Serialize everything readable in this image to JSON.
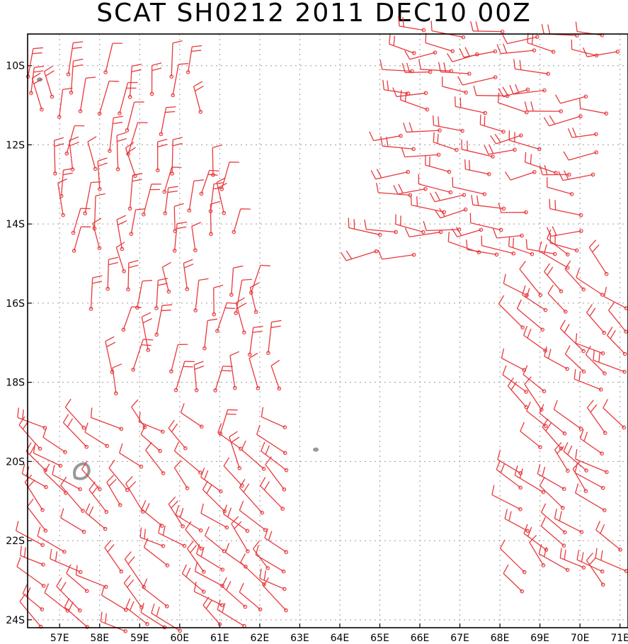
{
  "title": "SCAT SH0212 2011 DEC10 00Z",
  "map": {
    "lon_range": [
      56.2,
      71.2
    ],
    "lat_range": [
      -24.2,
      -9.2
    ],
    "lon_ticks": [
      57,
      58,
      59,
      60,
      61,
      62,
      63,
      64,
      65,
      66,
      67,
      68,
      69,
      70,
      71
    ],
    "lat_ticks": [
      -10,
      -12,
      -14,
      -16,
      -18,
      -20,
      -22,
      -24
    ],
    "lon_tick_labels": [
      "57E",
      "58E",
      "59E",
      "60E",
      "61E",
      "62E",
      "63E",
      "64E",
      "65E",
      "66E",
      "67E",
      "68E",
      "69E",
      "70E",
      "71E"
    ],
    "lat_tick_labels": [
      "10S",
      "12S",
      "14S",
      "16S",
      "18S",
      "20S",
      "22S",
      "24S"
    ],
    "grid": "dotted",
    "wind_barb_color": "#e8393d",
    "land_color": "#999999",
    "islands": [
      {
        "lon": 57.6,
        "lat": -20.3,
        "shape": "ring"
      },
      {
        "lon": 56.5,
        "lat": -10.35,
        "shape": "dot"
      },
      {
        "lon": 63.4,
        "lat": -19.7,
        "shape": "dot"
      }
    ],
    "swaths": [
      {
        "lon_min": 56.2,
        "lon_max": 60.3,
        "lat_top": -10.2,
        "lat_bot": -18.2,
        "dir": "N",
        "slant": 0.28
      },
      {
        "lon_min": 66.0,
        "lon_max": 71.2,
        "lat_top": -9.2,
        "lat_bot": -14.7,
        "dir": "W",
        "slant": -0.2
      },
      {
        "lon_min": 68.6,
        "lon_max": 71.2,
        "lat_top": -14.7,
        "lat_bot": -23.2,
        "dir": "NW",
        "slant": 0
      },
      {
        "lon_min": 56.6,
        "lon_max": 62.7,
        "lat_top": -19.2,
        "lat_bot": -24.2,
        "dir": "NW",
        "slant": 0
      },
      {
        "lon_min": 61.0,
        "lon_max": 61.6,
        "lat_top": -19.2,
        "lat_bot": -20.2,
        "dir": "N",
        "slant": 0
      }
    ]
  }
}
